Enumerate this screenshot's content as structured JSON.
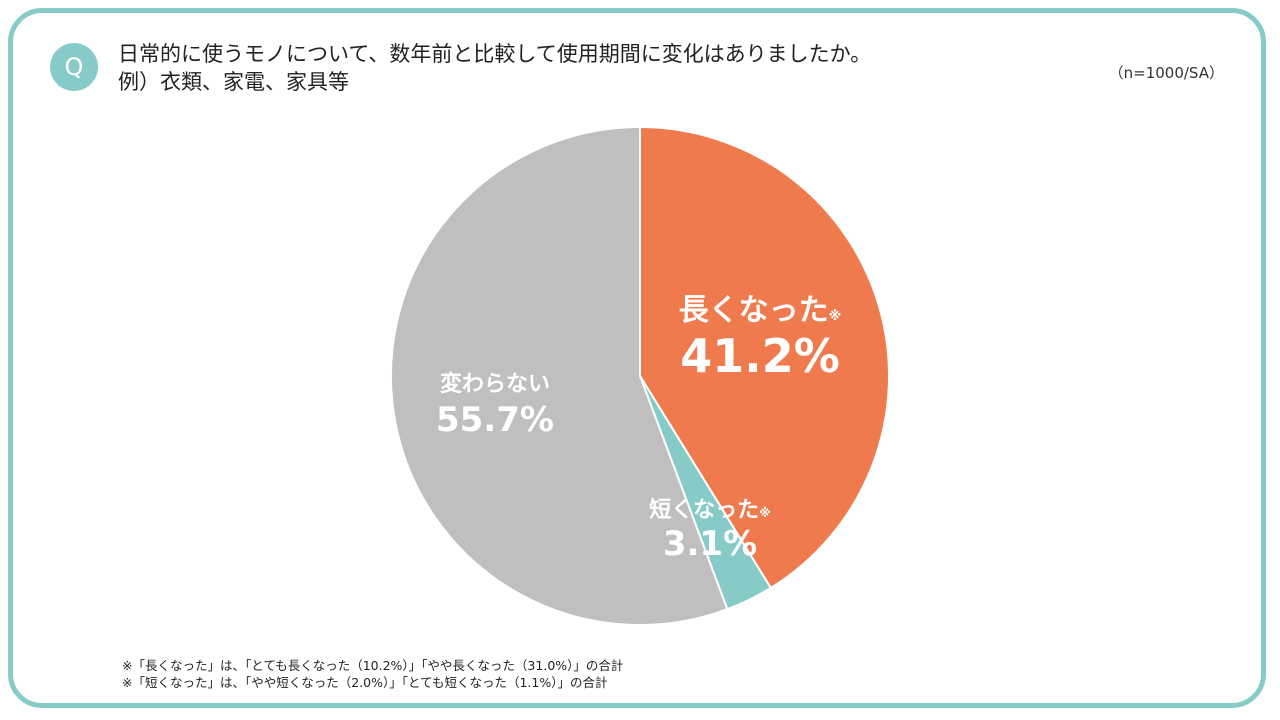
{
  "header": {
    "badge": "Q",
    "title_line1": "日常的に使うモノについて、数年前と比較して使用期間に変化はありましたか。",
    "title_line2": "例）衣類、家電、家具等",
    "sample": "（n=1000/SA）"
  },
  "chart_data": {
    "type": "pie",
    "start": "top",
    "direction": "clockwise",
    "slices": [
      {
        "label": "長くなった",
        "mark": "※",
        "value": 41.2,
        "value_label": "41.2%",
        "color": "#ee7a4e"
      },
      {
        "label": "短くなった",
        "mark": "※",
        "value": 3.1,
        "value_label": "3.1%",
        "color": "#87cbc8"
      },
      {
        "label": "変わらない",
        "mark": "",
        "value": 55.7,
        "value_label": "55.7%",
        "color": "#bfbfbf"
      }
    ]
  },
  "footnotes": [
    "※「長くなった」は、「とても長くなった（10.2%）」「やや長くなった（31.0%）」の合計",
    "※「短くなった」は、「やや短くなった（2.0%）」「とても短くなった（1.1%）」の合計"
  ]
}
